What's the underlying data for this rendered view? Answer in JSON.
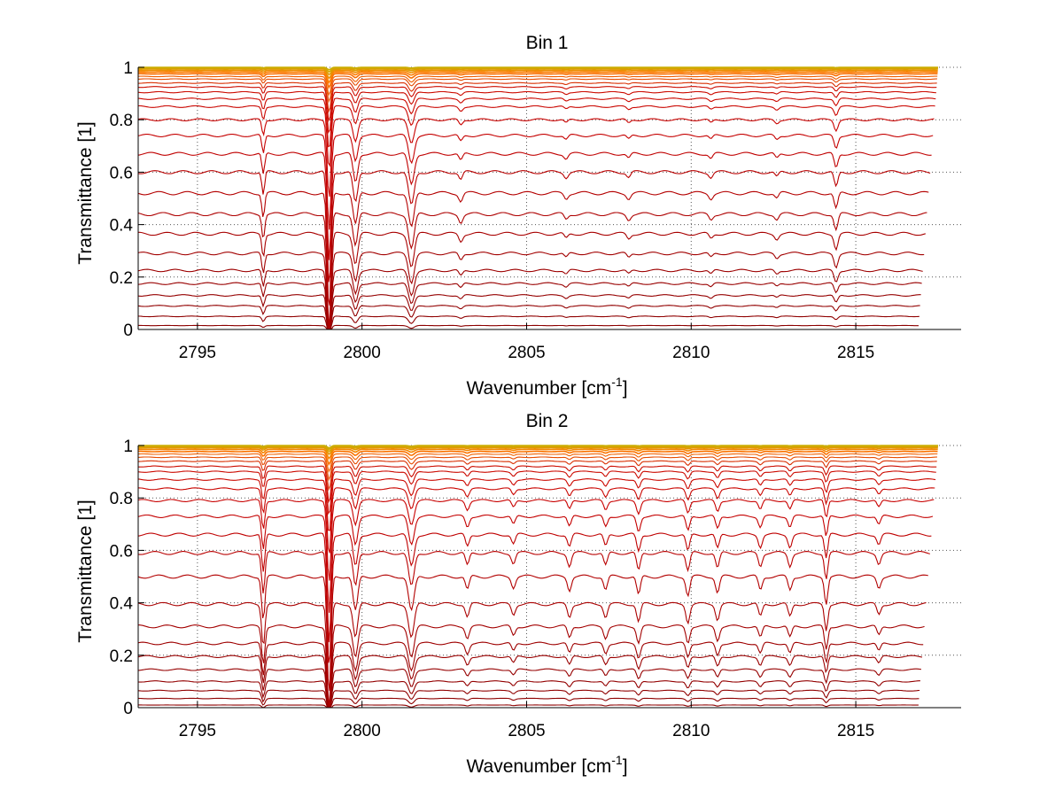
{
  "chart_data": [
    {
      "type": "line",
      "title": "Bin 1",
      "xlabel": {
        "base": "Wavenumber [cm",
        "sup": "-1",
        "tail": "]"
      },
      "ylabel": "Transmittance [1]",
      "xlim": [
        2793.2,
        2818.2
      ],
      "ylim": [
        0,
        1
      ],
      "xticks": [
        {
          "value": 2795,
          "label": "2795"
        },
        {
          "value": 2800,
          "label": "2800"
        },
        {
          "value": 2805,
          "label": "2805"
        },
        {
          "value": 2810,
          "label": "2810"
        },
        {
          "value": 2815,
          "label": "2815"
        }
      ],
      "yticks": [
        {
          "value": 0,
          "label": "0"
        },
        {
          "value": 0.2,
          "label": "0.2"
        },
        {
          "value": 0.4,
          "label": "0.4"
        },
        {
          "value": 0.6,
          "label": "0.6"
        },
        {
          "value": 0.8,
          "label": "0.8"
        },
        {
          "value": 1,
          "label": "1"
        }
      ],
      "grid": "dotted",
      "x_range": [
        2793.2,
        2817.5
      ],
      "series_levels": [
        0.015,
        0.05,
        0.09,
        0.13,
        0.175,
        0.225,
        0.29,
        0.365,
        0.44,
        0.52,
        0.6,
        0.67,
        0.74,
        0.8,
        0.85,
        0.88,
        0.905,
        0.925,
        0.94,
        0.955,
        0.965,
        0.975,
        0.982,
        0.988,
        0.993,
        0.997,
        1.0
      ],
      "absorption_lines": [
        {
          "x": 2797.0,
          "depth": 0.09,
          "width": 0.06
        },
        {
          "x": 2799.0,
          "depth": 0.45,
          "width": 0.08
        },
        {
          "x": 2799.8,
          "depth": 0.12,
          "width": 0.1
        },
        {
          "x": 2801.5,
          "depth": 0.13,
          "width": 0.12
        },
        {
          "x": 2803.0,
          "depth": 0.03,
          "width": 0.08
        },
        {
          "x": 2806.2,
          "depth": 0.02,
          "width": 0.08
        },
        {
          "x": 2808.1,
          "depth": 0.02,
          "width": 0.08
        },
        {
          "x": 2810.6,
          "depth": 0.02,
          "width": 0.08
        },
        {
          "x": 2812.6,
          "depth": 0.02,
          "width": 0.08
        },
        {
          "x": 2814.4,
          "depth": 0.06,
          "width": 0.08
        }
      ],
      "colors": [
        "#8b0000",
        "#c80000",
        "#e04000",
        "#ff7a00",
        "#a8d000"
      ]
    },
    {
      "type": "line",
      "title": "Bin 2",
      "xlabel": {
        "base": "Wavenumber [cm",
        "sup": "-1",
        "tail": "]"
      },
      "ylabel": "Transmittance [1]",
      "xlim": [
        2793.2,
        2818.2
      ],
      "ylim": [
        0,
        1
      ],
      "xticks": [
        {
          "value": 2795,
          "label": "2795"
        },
        {
          "value": 2800,
          "label": "2800"
        },
        {
          "value": 2805,
          "label": "2805"
        },
        {
          "value": 2810,
          "label": "2810"
        },
        {
          "value": 2815,
          "label": "2815"
        }
      ],
      "yticks": [
        {
          "value": 0,
          "label": "0"
        },
        {
          "value": 0.2,
          "label": "0.2"
        },
        {
          "value": 0.4,
          "label": "0.4"
        },
        {
          "value": 0.6,
          "label": "0.6"
        },
        {
          "value": 0.8,
          "label": "0.8"
        },
        {
          "value": 1,
          "label": "1"
        }
      ],
      "grid": "dotted",
      "x_range": [
        2793.2,
        2817.5
      ],
      "series_levels": [
        0.01,
        0.035,
        0.065,
        0.1,
        0.145,
        0.195,
        0.245,
        0.31,
        0.395,
        0.5,
        0.59,
        0.66,
        0.73,
        0.79,
        0.835,
        0.87,
        0.9,
        0.92,
        0.94,
        0.955,
        0.967,
        0.977,
        0.985,
        0.991,
        0.995,
        0.998,
        1.0
      ],
      "absorption_lines": [
        {
          "x": 2797.0,
          "depth": 0.16,
          "width": 0.07
        },
        {
          "x": 2799.0,
          "depth": 0.45,
          "width": 0.08
        },
        {
          "x": 2799.8,
          "depth": 0.13,
          "width": 0.1
        },
        {
          "x": 2801.5,
          "depth": 0.13,
          "width": 0.12
        },
        {
          "x": 2803.2,
          "depth": 0.05,
          "width": 0.08
        },
        {
          "x": 2804.6,
          "depth": 0.04,
          "width": 0.08
        },
        {
          "x": 2806.3,
          "depth": 0.05,
          "width": 0.08
        },
        {
          "x": 2807.4,
          "depth": 0.05,
          "width": 0.08
        },
        {
          "x": 2808.4,
          "depth": 0.07,
          "width": 0.08
        },
        {
          "x": 2809.9,
          "depth": 0.07,
          "width": 0.08
        },
        {
          "x": 2810.8,
          "depth": 0.06,
          "width": 0.08
        },
        {
          "x": 2812.1,
          "depth": 0.05,
          "width": 0.08
        },
        {
          "x": 2813.0,
          "depth": 0.05,
          "width": 0.08
        },
        {
          "x": 2814.1,
          "depth": 0.1,
          "width": 0.07
        },
        {
          "x": 2815.7,
          "depth": 0.04,
          "width": 0.08
        }
      ],
      "colors": [
        "#8b0000",
        "#c80000",
        "#e04000",
        "#ff7a00",
        "#a8d000"
      ]
    }
  ]
}
